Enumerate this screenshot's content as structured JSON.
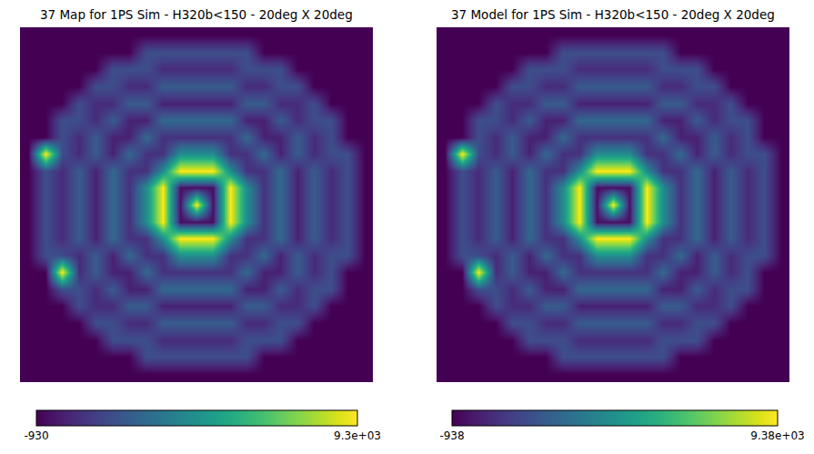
{
  "chart_data": [
    {
      "type": "heatmap",
      "title": "37 Map for 1PS Sim - H320b<150 - 20deg X 20deg",
      "color": "Viridis",
      "grid": false,
      "tick_labels": false,
      "x": [
        -10,
        -9,
        -8,
        -7,
        -6,
        -5,
        -4,
        -3,
        -2,
        -1,
        0,
        1,
        2,
        3,
        4,
        5,
        6,
        7,
        8,
        9,
        10
      ],
      "y": [
        -10,
        -9,
        -8,
        -7,
        -6,
        -5,
        -4,
        -3,
        -2,
        -1,
        0,
        1,
        2,
        3,
        4,
        5,
        6,
        7,
        8,
        9,
        10
      ],
      "cells": [
        [
          -930,
          -930,
          -930,
          -930,
          -930,
          -930,
          -930,
          -930,
          -930,
          -930,
          -930,
          -930,
          -930,
          -930,
          -930,
          -930,
          -930,
          -930,
          -930,
          -930,
          -930
        ],
        [
          -930,
          -930,
          -930,
          -930,
          -930,
          -930,
          -930,
          1500,
          1500,
          1500,
          1500,
          1500,
          1500,
          1500,
          -930,
          -930,
          -930,
          -930,
          -930,
          -930,
          -930
        ],
        [
          -930,
          -930,
          -930,
          -930,
          -930,
          1500,
          1500,
          1500,
          300,
          300,
          300,
          300,
          300,
          1500,
          1500,
          1500,
          -930,
          -930,
          -930,
          -930,
          -930
        ],
        [
          -930,
          -930,
          -930,
          -930,
          1500,
          1500,
          300,
          300,
          2000,
          2000,
          2000,
          2000,
          2000,
          300,
          300,
          1500,
          1500,
          -930,
          -930,
          -930,
          -930
        ],
        [
          -930,
          -930,
          -930,
          1500,
          300,
          300,
          2000,
          2000,
          0,
          0,
          0,
          0,
          0,
          2000,
          2000,
          300,
          300,
          1500,
          -930,
          -930,
          -930
        ],
        [
          -930,
          -930,
          1500,
          1500,
          300,
          2000,
          0,
          0,
          2500,
          2500,
          2500,
          2500,
          2500,
          0,
          0,
          2000,
          300,
          1500,
          1500,
          -930,
          -930
        ],
        [
          -930,
          -930,
          9300,
          300,
          2000,
          0,
          0,
          2500,
          500,
          500,
          500,
          500,
          500,
          2500,
          0,
          0,
          2000,
          300,
          1500,
          -930,
          -930
        ],
        [
          -930,
          1500,
          1500,
          300,
          2000,
          0,
          2500,
          500,
          500,
          4000,
          4000,
          4000,
          500,
          500,
          2500,
          0,
          2000,
          300,
          1500,
          1500,
          -930
        ],
        [
          -930,
          1500,
          300,
          2000,
          0,
          2500,
          500,
          500,
          4000,
          9300,
          9300,
          9300,
          4000,
          500,
          500,
          2500,
          0,
          2000,
          300,
          1500,
          -930
        ],
        [
          -930,
          1500,
          300,
          2000,
          0,
          2500,
          500,
          4000,
          9300,
          -500,
          -500,
          -500,
          9300,
          4000,
          500,
          2500,
          0,
          2000,
          300,
          1500,
          -930
        ],
        [
          -930,
          1500,
          300,
          2000,
          0,
          2500,
          500,
          4000,
          9300,
          -500,
          9300,
          -500,
          9300,
          4000,
          500,
          2500,
          0,
          2000,
          300,
          1500,
          -930
        ],
        [
          -930,
          1500,
          300,
          2000,
          0,
          2500,
          500,
          4000,
          9300,
          -500,
          -500,
          -500,
          9300,
          4000,
          500,
          2500,
          0,
          2000,
          300,
          1500,
          -930
        ],
        [
          -930,
          1500,
          300,
          2000,
          0,
          2500,
          500,
          500,
          4000,
          9300,
          9300,
          9300,
          4000,
          500,
          500,
          2500,
          0,
          2000,
          300,
          1500,
          -930
        ],
        [
          -930,
          9300,
          1500,
          300,
          2000,
          0,
          2500,
          500,
          500,
          4000,
          4000,
          4000,
          500,
          500,
          2500,
          0,
          2000,
          300,
          1500,
          1500,
          -930
        ],
        [
          -930,
          -930,
          1500,
          300,
          2000,
          0,
          0,
          2500,
          500,
          500,
          500,
          500,
          500,
          2500,
          0,
          0,
          2000,
          300,
          1500,
          -930,
          -930
        ],
        [
          -930,
          -930,
          1500,
          1500,
          300,
          2000,
          0,
          0,
          2500,
          2500,
          2500,
          2500,
          2500,
          0,
          0,
          2000,
          300,
          1500,
          1500,
          -930,
          -930
        ],
        [
          -930,
          -930,
          -930,
          1500,
          300,
          300,
          2000,
          2000,
          0,
          0,
          0,
          0,
          0,
          2000,
          2000,
          300,
          300,
          1500,
          -930,
          -930,
          -930
        ],
        [
          -930,
          -930,
          -930,
          -930,
          1500,
          1500,
          300,
          300,
          2000,
          2000,
          2000,
          2000,
          2000,
          300,
          300,
          1500,
          1500,
          -930,
          -930,
          -930,
          -930
        ],
        [
          -930,
          -930,
          -930,
          -930,
          -930,
          1500,
          1500,
          1500,
          300,
          300,
          300,
          300,
          300,
          1500,
          1500,
          1500,
          -930,
          -930,
          -930,
          -930,
          -930
        ],
        [
          -930,
          -930,
          -930,
          -930,
          -930,
          -930,
          -930,
          1500,
          1500,
          1500,
          1500,
          1500,
          1500,
          1500,
          -930,
          -930,
          -930,
          -930,
          -930,
          -930,
          -930
        ],
        [
          -930,
          -930,
          -930,
          -930,
          -930,
          -930,
          -930,
          -930,
          -930,
          -930,
          -930,
          -930,
          -930,
          -930,
          -930,
          -930,
          -930,
          -930,
          -930,
          -930,
          -930
        ]
      ],
      "zlim": [
        -930,
        9300
      ],
      "zticks": [
        -930,
        {
          "value": 9300,
          "label": "9.3e+03"
        }
      ]
    },
    {
      "type": "heatmap",
      "title": "37 Model for 1PS Sim - H320b<150 - 20deg X 20deg",
      "color": "Viridis",
      "grid": false,
      "tick_labels": false,
      "x": [
        -10,
        -9,
        -8,
        -7,
        -6,
        -5,
        -4,
        -3,
        -2,
        -1,
        0,
        1,
        2,
        3,
        4,
        5,
        6,
        7,
        8,
        9,
        10
      ],
      "y": [
        -10,
        -9,
        -8,
        -7,
        -6,
        -5,
        -4,
        -3,
        -2,
        -1,
        0,
        1,
        2,
        3,
        4,
        5,
        6,
        7,
        8,
        9,
        10
      ],
      "cells": [
        [
          -938,
          -938,
          -938,
          -938,
          -938,
          -938,
          -938,
          -938,
          -938,
          -938,
          -938,
          -938,
          -938,
          -938,
          -938,
          -938,
          -938,
          -938,
          -938,
          -938,
          -938
        ],
        [
          -938,
          -938,
          -938,
          -938,
          -938,
          -938,
          -938,
          1500,
          1500,
          1500,
          1500,
          1500,
          1500,
          1500,
          -938,
          -938,
          -938,
          -938,
          -938,
          -938,
          -938
        ],
        [
          -938,
          -938,
          -938,
          -938,
          -938,
          1500,
          1500,
          1500,
          300,
          300,
          300,
          300,
          300,
          1500,
          1500,
          1500,
          -938,
          -938,
          -938,
          -938,
          -938
        ],
        [
          -938,
          -938,
          -938,
          -938,
          1500,
          1500,
          300,
          300,
          2000,
          2000,
          2000,
          2000,
          2000,
          300,
          300,
          1500,
          1500,
          -938,
          -938,
          -938,
          -938
        ],
        [
          -938,
          -938,
          -938,
          1500,
          300,
          300,
          2000,
          2000,
          0,
          0,
          0,
          0,
          0,
          2000,
          2000,
          300,
          300,
          1500,
          -938,
          -938,
          -938
        ],
        [
          -938,
          -938,
          1500,
          1500,
          300,
          2000,
          0,
          0,
          2500,
          2500,
          2500,
          2500,
          2500,
          0,
          0,
          2000,
          300,
          1500,
          1500,
          -938,
          -938
        ],
        [
          -938,
          -938,
          9380,
          300,
          2000,
          0,
          0,
          2500,
          500,
          500,
          500,
          500,
          500,
          2500,
          0,
          0,
          2000,
          300,
          1500,
          -938,
          -938
        ],
        [
          -938,
          1500,
          1500,
          300,
          2000,
          0,
          2500,
          500,
          500,
          4000,
          4000,
          4000,
          500,
          500,
          2500,
          0,
          2000,
          300,
          1500,
          1500,
          -938
        ],
        [
          -938,
          1500,
          300,
          2000,
          0,
          2500,
          500,
          500,
          4000,
          9380,
          9380,
          9380,
          4000,
          500,
          500,
          2500,
          0,
          2000,
          300,
          1500,
          -938
        ],
        [
          -938,
          1500,
          300,
          2000,
          0,
          2500,
          500,
          4000,
          9380,
          -500,
          -500,
          -500,
          9380,
          4000,
          500,
          2500,
          0,
          2000,
          300,
          1500,
          -938
        ],
        [
          -938,
          1500,
          300,
          2000,
          0,
          2500,
          500,
          4000,
          9380,
          -500,
          9380,
          -500,
          9380,
          4000,
          500,
          2500,
          0,
          2000,
          300,
          1500,
          -938
        ],
        [
          -938,
          1500,
          300,
          2000,
          0,
          2500,
          500,
          4000,
          9380,
          -500,
          -500,
          -500,
          9380,
          4000,
          500,
          2500,
          0,
          2000,
          300,
          1500,
          -938
        ],
        [
          -938,
          1500,
          300,
          2000,
          0,
          2500,
          500,
          500,
          4000,
          9380,
          9380,
          9380,
          4000,
          500,
          500,
          2500,
          0,
          2000,
          300,
          1500,
          -938
        ],
        [
          -938,
          9380,
          1500,
          300,
          2000,
          0,
          2500,
          500,
          500,
          4000,
          4000,
          4000,
          500,
          500,
          2500,
          0,
          2000,
          300,
          1500,
          1500,
          -938
        ],
        [
          -938,
          -938,
          1500,
          300,
          2000,
          0,
          0,
          2500,
          500,
          500,
          500,
          500,
          500,
          2500,
          0,
          0,
          2000,
          300,
          1500,
          -938,
          -938
        ],
        [
          -938,
          -938,
          1500,
          1500,
          300,
          2000,
          0,
          0,
          2500,
          2500,
          2500,
          2500,
          2500,
          0,
          0,
          2000,
          300,
          1500,
          1500,
          -938,
          -938
        ],
        [
          -938,
          -938,
          -938,
          1500,
          300,
          300,
          2000,
          2000,
          0,
          0,
          0,
          0,
          0,
          2000,
          2000,
          300,
          300,
          1500,
          -938,
          -938,
          -938
        ],
        [
          -938,
          -938,
          -938,
          -938,
          1500,
          1500,
          300,
          300,
          2000,
          2000,
          2000,
          2000,
          2000,
          300,
          300,
          1500,
          1500,
          -938,
          -938,
          -938,
          -938
        ],
        [
          -938,
          -938,
          -938,
          -938,
          -938,
          1500,
          1500,
          1500,
          300,
          300,
          300,
          300,
          300,
          1500,
          1500,
          1500,
          -938,
          -938,
          -938,
          -938,
          -938
        ],
        [
          -938,
          -938,
          -938,
          -938,
          -938,
          -938,
          -938,
          1500,
          1500,
          1500,
          1500,
          1500,
          1500,
          1500,
          -938,
          -938,
          -938,
          -938,
          -938,
          -938,
          -938
        ],
        [
          -938,
          -938,
          -938,
          -938,
          -938,
          -938,
          -938,
          -938,
          -938,
          -938,
          -938,
          -938,
          -938,
          -938,
          -938,
          -938,
          -938,
          -938,
          -938,
          -938,
          -938
        ]
      ],
      "zlim": [
        -938,
        9380
      ],
      "zticks": [
        -938,
        {
          "value": 9380,
          "label": "9.38e+03"
        }
      ]
    }
  ]
}
